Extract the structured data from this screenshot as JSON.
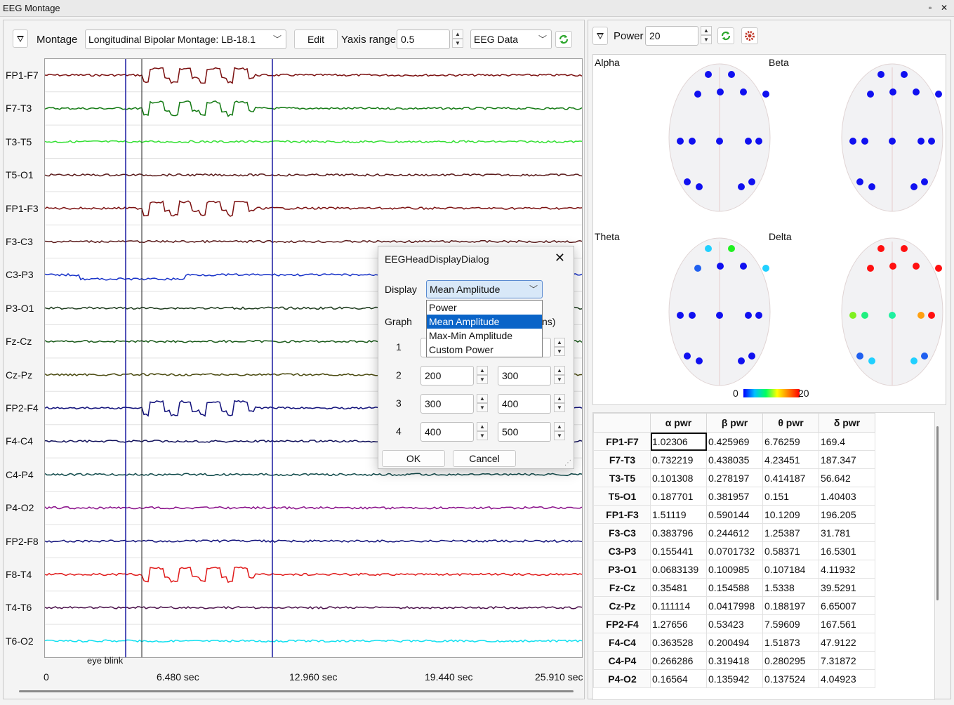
{
  "window": {
    "title": "EEG Montage"
  },
  "toolbar": {
    "montage_label": "Montage",
    "montage_value": "Longitudinal Bipolar Montage: LB-18.1",
    "edit_label": "Edit",
    "yaxis_label": "Yaxis range",
    "yaxis_value": "0.5",
    "source_value": "EEG Data"
  },
  "channels": [
    "FP1-F7",
    "F7-T3",
    "T3-T5",
    "T5-O1",
    "FP1-F3",
    "F3-C3",
    "C3-P3",
    "P3-O1",
    "Fz-Cz",
    "Cz-Pz",
    "FP2-F4",
    "F4-C4",
    "C4-P4",
    "P4-O2",
    "FP2-F8",
    "F8-T4",
    "T4-T6",
    "T6-O2"
  ],
  "channel_colors": [
    "#7b1010",
    "#137a13",
    "#33e033",
    "#5a1a1a",
    "#7b1010",
    "#5a1a1a",
    "#1530c8",
    "#1c3a1c",
    "#1a5a1a",
    "#4a4a10",
    "#10107a",
    "#10105a",
    "#104a4a",
    "#8a108a",
    "#10107a",
    "#e01a1a",
    "#4a104a",
    "#10e0f0"
  ],
  "annotation": "eye blink",
  "time_axis": [
    "0",
    "6.480 sec",
    "12.960 sec",
    "19.440 sec",
    "25.910 sec"
  ],
  "right_toolbar": {
    "power_label": "Power",
    "power_value": "20"
  },
  "bands": [
    "Alpha",
    "Beta",
    "Theta",
    "Delta"
  ],
  "colorbar": {
    "min": "0",
    "max": "20"
  },
  "table": {
    "headers": [
      "α pwr",
      "β pwr",
      "θ pwr",
      "δ pwr"
    ],
    "rows": [
      [
        "FP1-F7",
        "1.02306",
        "0.425969",
        "6.76259",
        "169.4"
      ],
      [
        "F7-T3",
        "0.732219",
        "0.438035",
        "4.23451",
        "187.347"
      ],
      [
        "T3-T5",
        "0.101308",
        "0.278197",
        "0.414187",
        "56.642"
      ],
      [
        "T5-O1",
        "0.187701",
        "0.381957",
        "0.151",
        "1.40403"
      ],
      [
        "FP1-F3",
        "1.51119",
        "0.590144",
        "10.1209",
        "196.205"
      ],
      [
        "F3-C3",
        "0.383796",
        "0.244612",
        "1.25387",
        "31.781"
      ],
      [
        "C3-P3",
        "0.155441",
        "0.0701732",
        "0.58371",
        "16.5301"
      ],
      [
        "P3-O1",
        "0.0683139",
        "0.100985",
        "0.107184",
        "4.11932"
      ],
      [
        "Fz-Cz",
        "0.35481",
        "0.154588",
        "1.5338",
        "39.5291"
      ],
      [
        "Cz-Pz",
        "0.111114",
        "0.0417998",
        "0.188197",
        "6.65007"
      ],
      [
        "FP2-F4",
        "1.27656",
        "0.53423",
        "7.59609",
        "167.561"
      ],
      [
        "F4-C4",
        "0.363528",
        "0.200494",
        "1.51873",
        "47.9122"
      ],
      [
        "C4-P4",
        "0.266286",
        "0.319418",
        "0.280295",
        "7.31872"
      ],
      [
        "P4-O2",
        "0.16564",
        "0.135942",
        "0.137524",
        "4.04923"
      ]
    ]
  },
  "dialog": {
    "title": "EEGHeadDisplayDialog",
    "display_label": "Display",
    "display_value": "Mean Amplitude",
    "options": [
      "Power",
      "Mean Amplitude",
      "Max-Min Amplitude",
      "Custom Power"
    ],
    "graph_label": "Graph",
    "graph_suffix": "ns)",
    "rows": [
      {
        "n": "1",
        "from": "",
        "to": ""
      },
      {
        "n": "2",
        "from": "200",
        "to": "300"
      },
      {
        "n": "3",
        "from": "300",
        "to": "400"
      },
      {
        "n": "4",
        "from": "400",
        "to": "500"
      }
    ],
    "ok_label": "OK",
    "cancel_label": "Cancel"
  }
}
